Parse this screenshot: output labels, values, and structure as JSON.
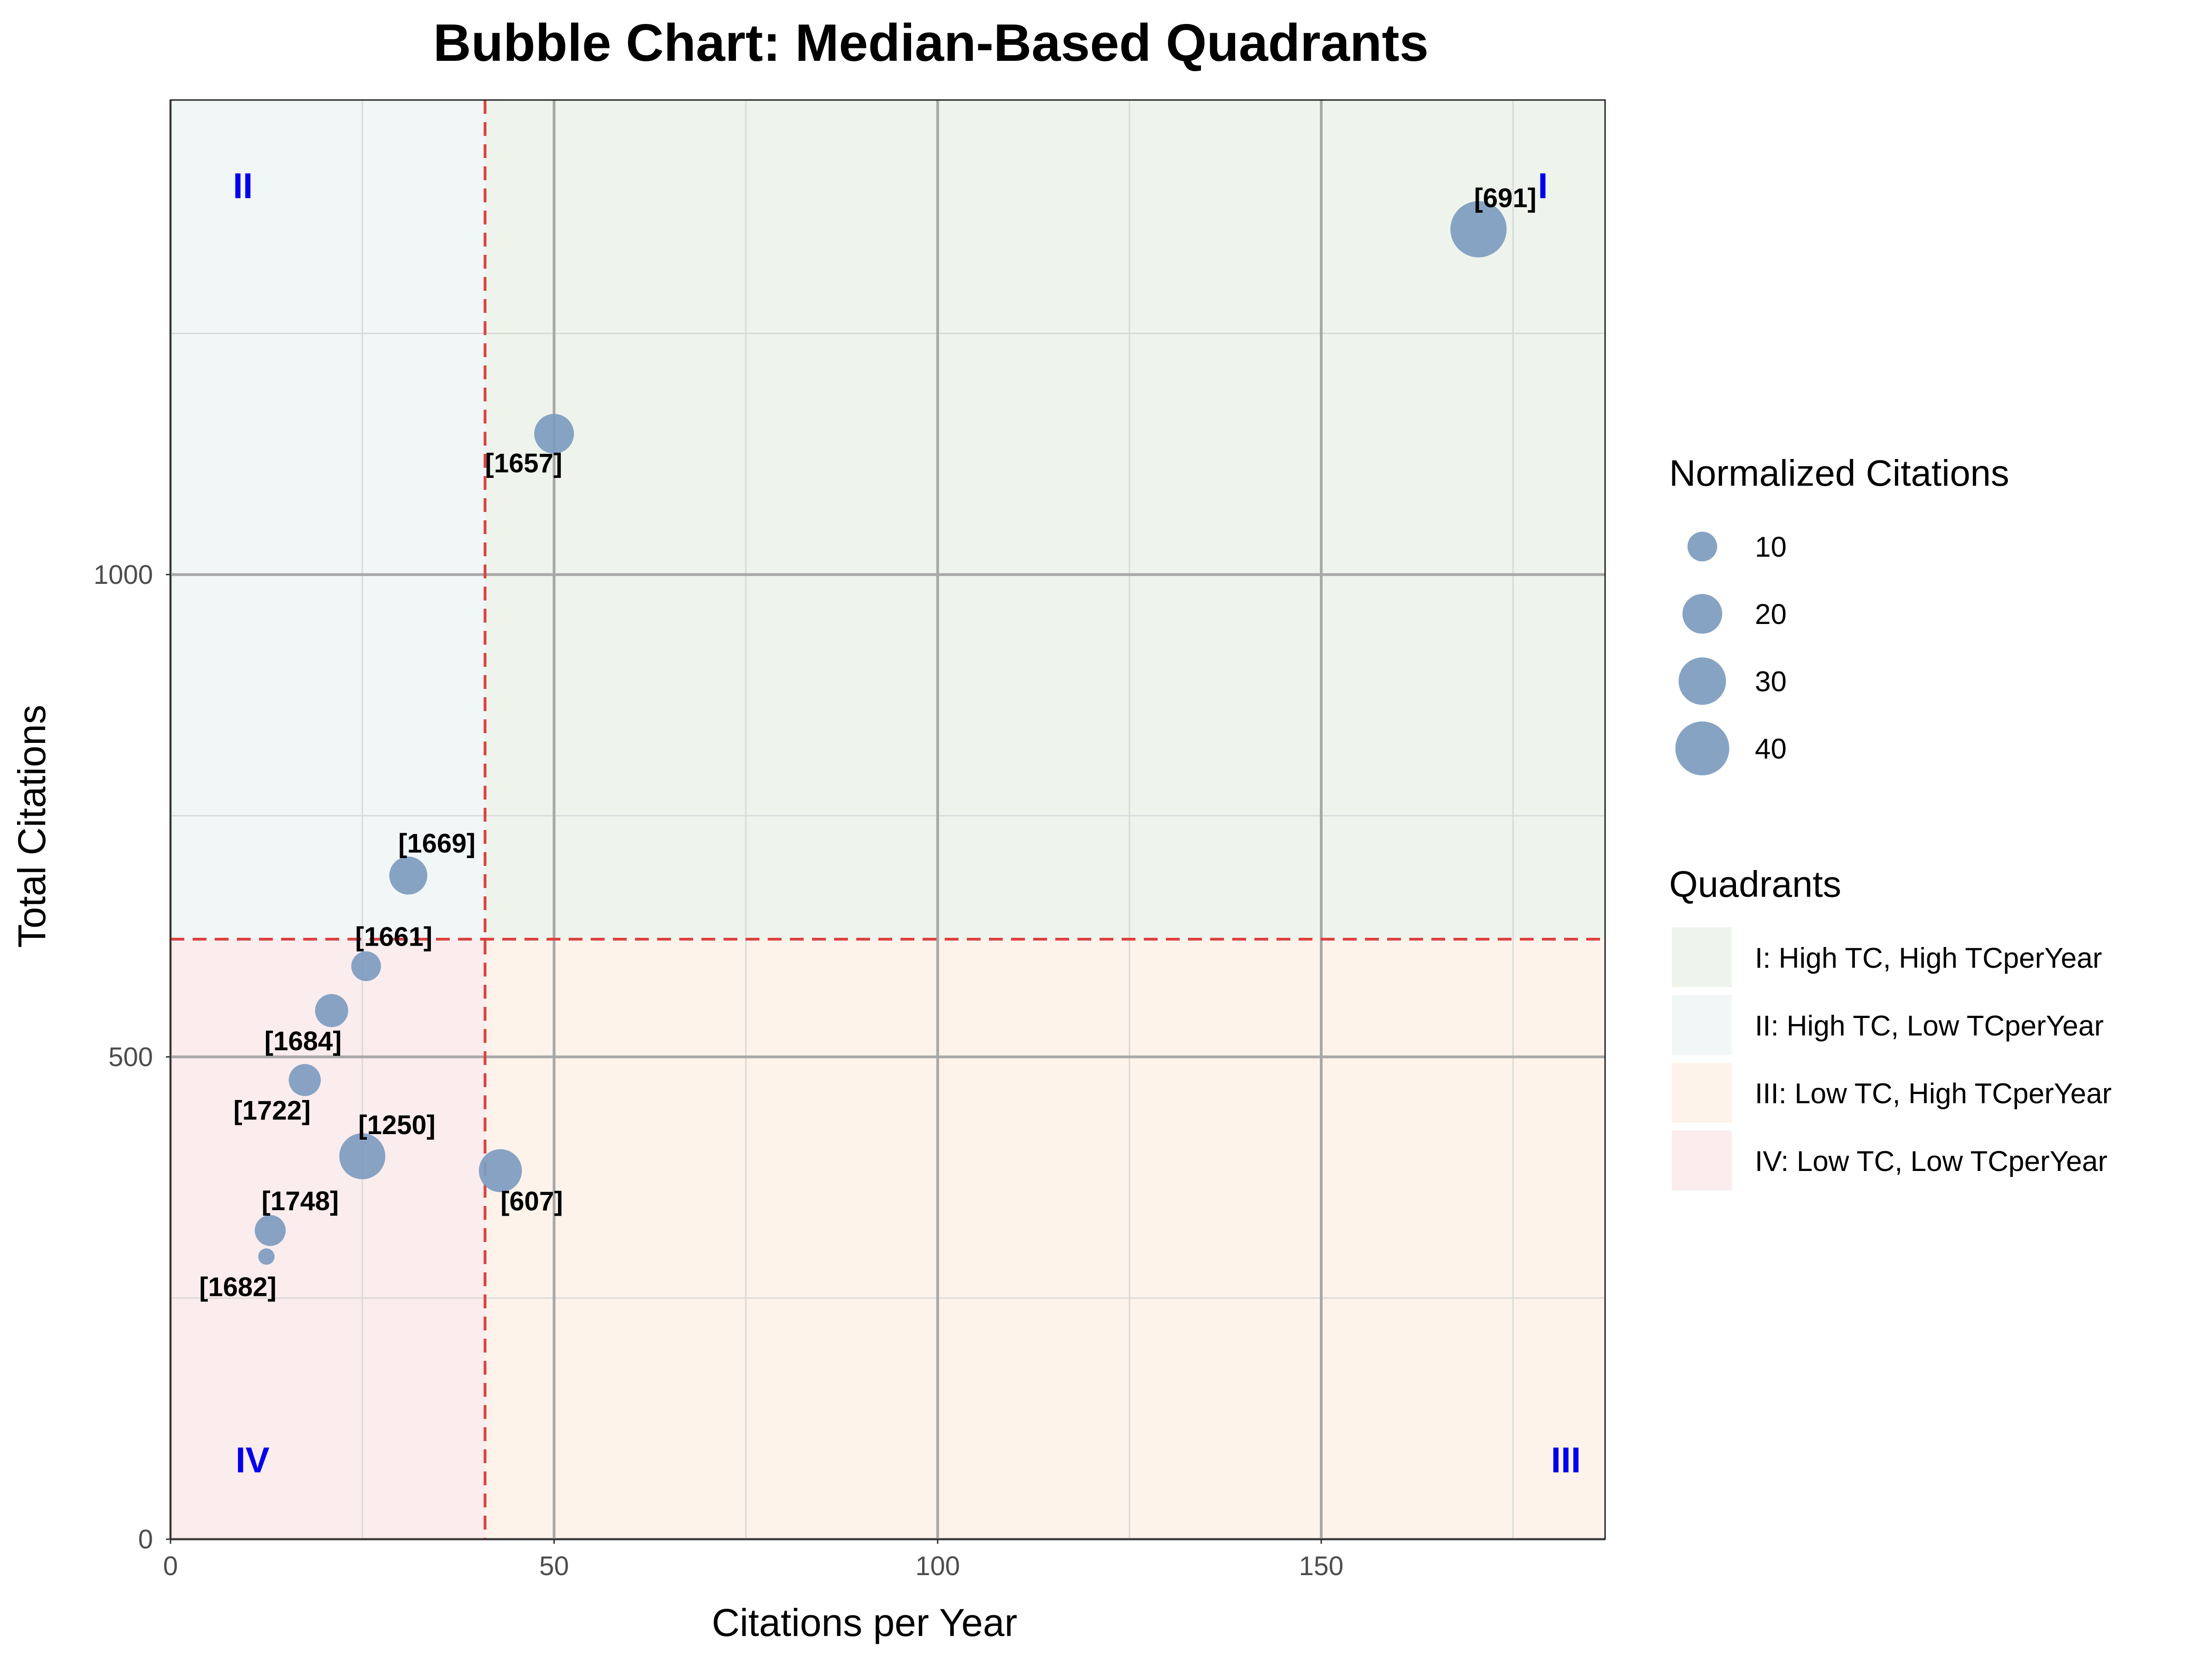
{
  "chart_data": {
    "type": "scatter",
    "title": "Bubble Chart: Median-Based Quadrants",
    "xlabel": "Citations per Year",
    "ylabel": "Total Citations",
    "xlim": [
      0,
      187
    ],
    "ylim": [
      0,
      1492
    ],
    "x_ticks": [
      0,
      50,
      100,
      150
    ],
    "y_ticks": [
      0,
      500,
      1000
    ],
    "x_tick_labels": [
      "0",
      "50",
      "100",
      "150"
    ],
    "y_tick_labels": [
      "0",
      "500",
      "1000"
    ],
    "median_x": 41,
    "median_y": 622,
    "points": [
      {
        "label": "[691]",
        "x": 170.5,
        "y": 1358,
        "size": 44
      },
      {
        "label": "[1657]",
        "x": 50,
        "y": 1146,
        "size": 20
      },
      {
        "label": "[1669]",
        "x": 31,
        "y": 688,
        "size": 18
      },
      {
        "label": "[1661]",
        "x": 25.5,
        "y": 594,
        "size": 10
      },
      {
        "label": "[1684]",
        "x": 21,
        "y": 548,
        "size": 13
      },
      {
        "label": "[1722]",
        "x": 17.5,
        "y": 476,
        "size": 12
      },
      {
        "label": "[1250]",
        "x": 25,
        "y": 397,
        "size": 28
      },
      {
        "label": "[607]",
        "x": 43,
        "y": 382,
        "size": 24
      },
      {
        "label": "[1748]",
        "x": 13,
        "y": 320,
        "size": 11
      },
      {
        "label": "[1682]",
        "x": 12.5,
        "y": 293,
        "size": 2
      }
    ],
    "quadrant_labels": {
      "q1": "I",
      "q2": "II",
      "q3": "III",
      "q4": "IV"
    },
    "size_legend": {
      "title": "Normalized Citations",
      "items": [
        {
          "label": "10",
          "size": 10
        },
        {
          "label": "20",
          "size": 20
        },
        {
          "label": "30",
          "size": 30
        },
        {
          "label": "40",
          "size": 40
        }
      ]
    },
    "quadrant_legend": {
      "title": "Quadrants",
      "items": [
        {
          "label": "I: High TC, High TCperYear",
          "color": "#eef4ec"
        },
        {
          "label": "II: High TC, Low TCperYear",
          "color": "#f1f6f7"
        },
        {
          "label": "III: Low TC, High TCperYear",
          "color": "#fdf3ea"
        },
        {
          "label": "IV: Low TC, Low TCperYear",
          "color": "#fbeced"
        }
      ]
    },
    "colors": {
      "bubble": "#7d9bbf",
      "median_line": "#dd4040",
      "quad_label": "#0000ee",
      "q1": "#eef4ec",
      "q2": "#f1f6f7",
      "q3": "#fdf3ea",
      "q4": "#fbeced"
    }
  }
}
